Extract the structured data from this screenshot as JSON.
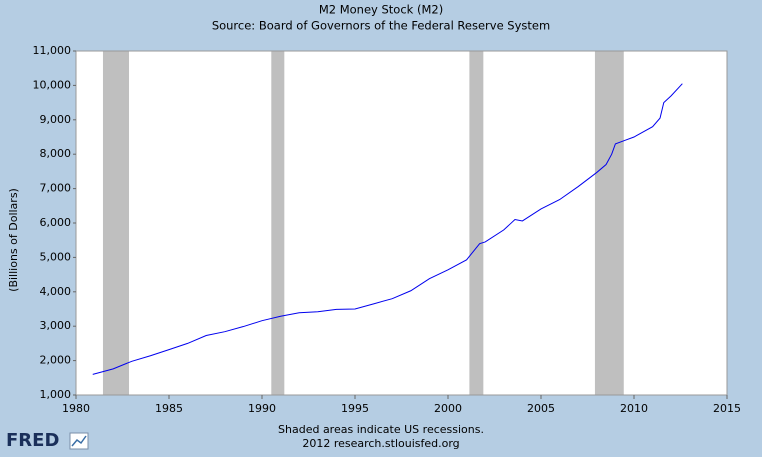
{
  "chart_data": {
    "type": "line",
    "title": "M2 Money Stock (M2)",
    "subtitle": "Source: Board of Governors of the Federal Reserve System",
    "y_label": "(Billions of Dollars)",
    "note": "Shaded areas indicate US recessions.",
    "source": "2012 research.stlouisfed.org",
    "logo": "FRED",
    "color": "#0000ee",
    "recession_color": "#bfbfbf",
    "grid": false,
    "x": [
      1980.9,
      1982.0,
      1983.0,
      1984.0,
      1985.0,
      1986.0,
      1987.0,
      1988.0,
      1989.0,
      1990.0,
      1991.0,
      1992.0,
      1993.0,
      1994.0,
      1995.0,
      1996.0,
      1997.0,
      1998.0,
      1999.0,
      2000.0,
      2001.0,
      2001.7,
      2002.0,
      2003.0,
      2003.6,
      2004.0,
      2005.0,
      2006.0,
      2007.0,
      2008.0,
      2008.5,
      2008.8,
      2009.0,
      2009.5,
      2010.0,
      2011.0,
      2011.4,
      2011.6,
      2012.0,
      2012.6
    ],
    "values": [
      1600,
      1760,
      1980,
      2140,
      2320,
      2500,
      2730,
      2840,
      2990,
      3160,
      3290,
      3390,
      3420,
      3490,
      3500,
      3650,
      3800,
      4030,
      4380,
      4640,
      4930,
      5400,
      5450,
      5800,
      6100,
      6060,
      6410,
      6680,
      7060,
      7470,
      7700,
      8000,
      8300,
      8400,
      8500,
      8800,
      9050,
      9500,
      9700,
      10050
    ],
    "recessions": [
      [
        1981.45,
        1982.85
      ],
      [
        1990.5,
        1991.2
      ],
      [
        2001.15,
        2001.9
      ],
      [
        2007.9,
        2009.45
      ]
    ],
    "xlim": [
      1980,
      2015
    ],
    "xticks": [
      1980,
      1985,
      1990,
      1995,
      2000,
      2005,
      2010,
      2015
    ],
    "ylim": [
      1000,
      11000
    ],
    "yticks": [
      {
        "value": 1000,
        "label": "1,000"
      },
      {
        "value": 2000,
        "label": "2,000"
      },
      {
        "value": 3000,
        "label": "3,000"
      },
      {
        "value": 4000,
        "label": "4,000"
      },
      {
        "value": 5000,
        "label": "5,000"
      },
      {
        "value": 6000,
        "label": "6,000"
      },
      {
        "value": 7000,
        "label": "7,000"
      },
      {
        "value": 8000,
        "label": "8,000"
      },
      {
        "value": 9000,
        "label": "9,000"
      },
      {
        "value": 10000,
        "label": "10,000"
      },
      {
        "value": 11000,
        "label": "11,000"
      }
    ]
  }
}
